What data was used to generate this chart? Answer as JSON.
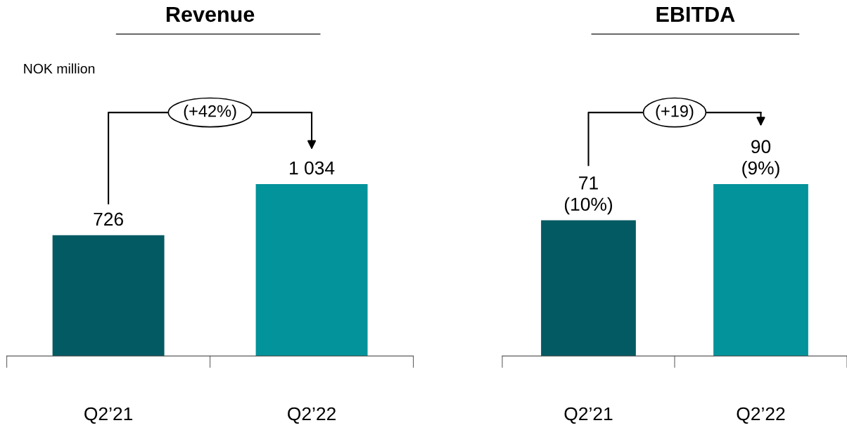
{
  "chart_data": [
    {
      "type": "bar",
      "title": "Revenue",
      "ylabel": "NOK million",
      "categories": [
        "Q2’21",
        "Q2’22"
      ],
      "values": [
        726,
        1034
      ],
      "colors": [
        "#035a63",
        "#03939a"
      ],
      "value_labels": [
        "726",
        "1 034"
      ],
      "annotations": [
        "(+42%)"
      ],
      "grid": false,
      "legend": false
    },
    {
      "type": "bar",
      "title": "EBITDA",
      "categories": [
        "Q2’21",
        "Q2’22"
      ],
      "values": [
        71,
        90
      ],
      "colors": [
        "#035a63",
        "#03939a"
      ],
      "value_labels": [
        "71\n(10%)",
        "90\n(9%)"
      ],
      "annotations": [
        "(+19)"
      ],
      "grid": false,
      "legend": false
    }
  ]
}
